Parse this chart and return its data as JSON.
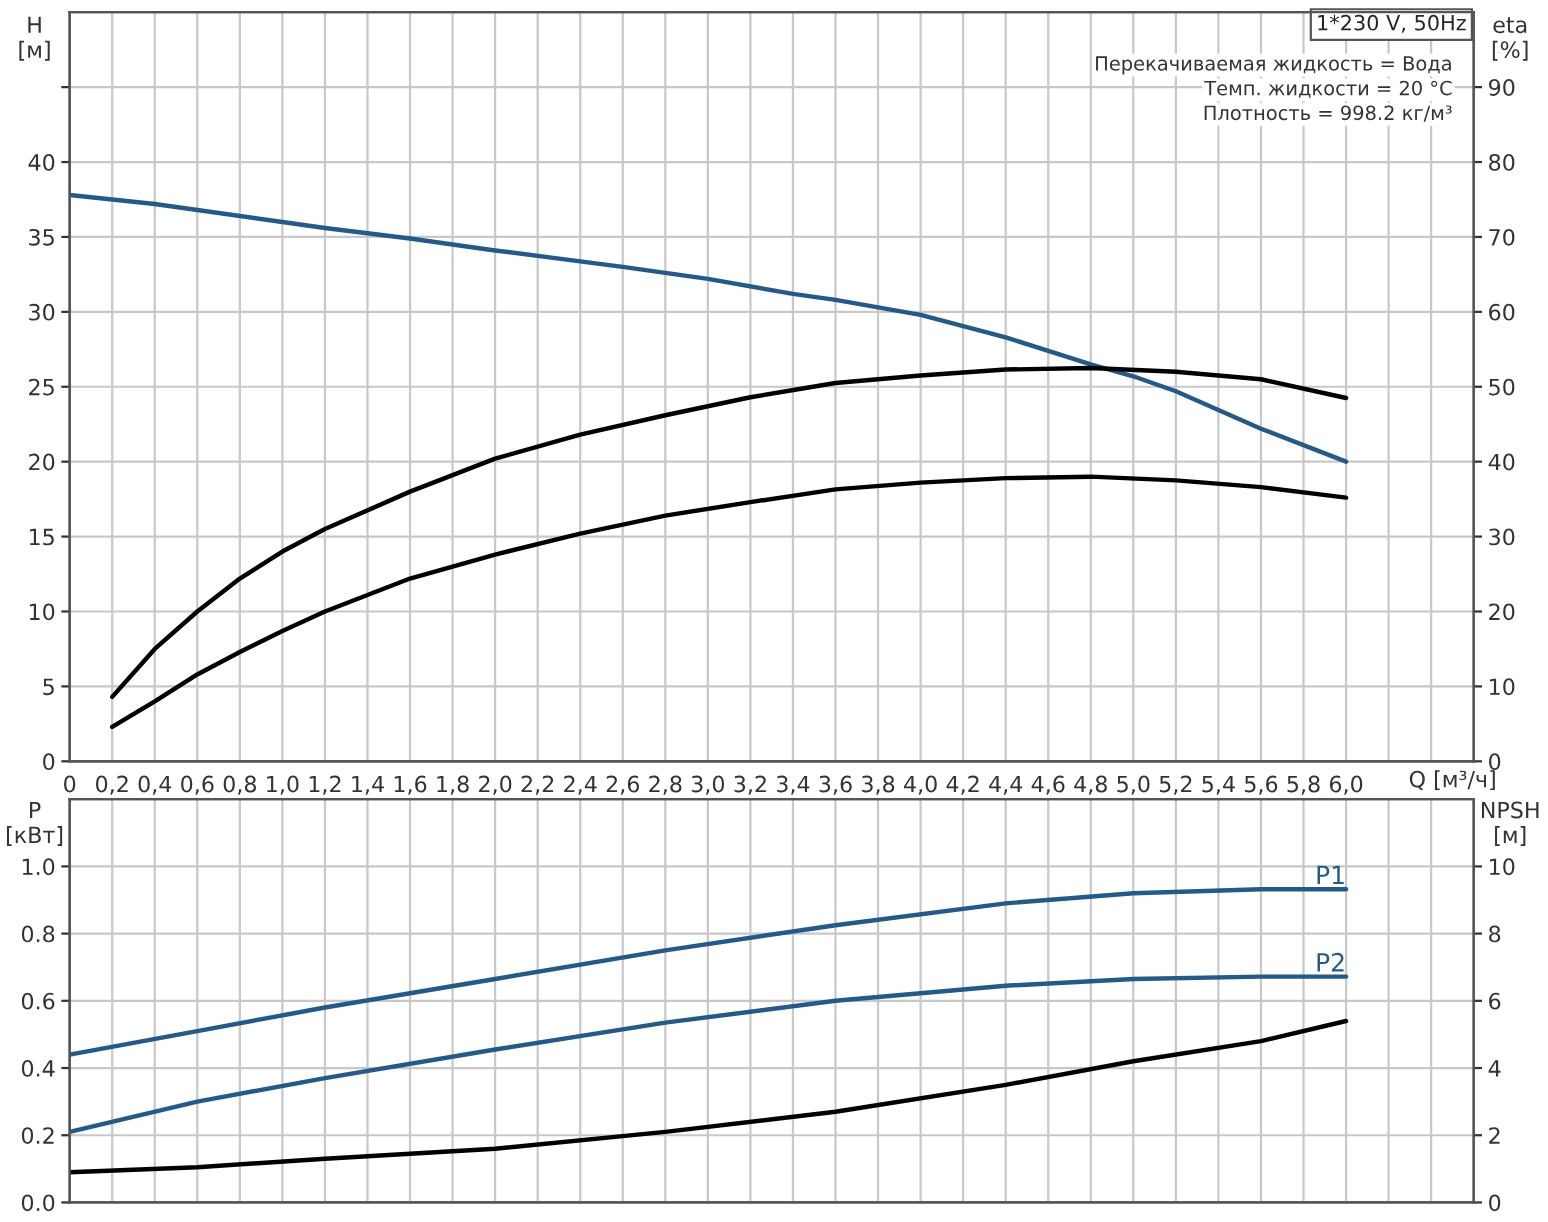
{
  "chart_data": [
    {
      "type": "line",
      "xlabel": "Q [м³/ч]",
      "ylabel": "H\n[м]",
      "y2label": "eta\n[%]",
      "annotations": [
        "1*230 V, 50Hz",
        "Перекачиваемая жидкость = Вода",
        "Темп. жидкости = 20 °C",
        "Плотность = 998.2 кг/м³"
      ],
      "xlim": [
        0,
        6.6
      ],
      "xticks": [
        0,
        {
          "value": 0.2,
          "label": "0,2"
        },
        {
          "value": 0.4,
          "label": "0,4"
        },
        {
          "value": 0.6,
          "label": "0,6"
        },
        {
          "value": 0.8,
          "label": "0,8"
        },
        {
          "value": 1.0,
          "label": "1,0"
        },
        {
          "value": 1.2,
          "label": "1,2"
        },
        {
          "value": 1.4,
          "label": "1,4"
        },
        {
          "value": 1.6,
          "label": "1,6"
        },
        {
          "value": 1.8,
          "label": "1,8"
        },
        {
          "value": 2.0,
          "label": "2,0"
        },
        {
          "value": 2.2,
          "label": "2,2"
        },
        {
          "value": 2.4,
          "label": "2,4"
        },
        {
          "value": 2.6,
          "label": "2,6"
        },
        {
          "value": 2.8,
          "label": "2,8"
        },
        {
          "value": 3.0,
          "label": "3,0"
        },
        {
          "value": 3.2,
          "label": "3,2"
        },
        {
          "value": 3.4,
          "label": "3,4"
        },
        {
          "value": 3.6,
          "label": "3,6"
        },
        {
          "value": 3.8,
          "label": "3,8"
        },
        {
          "value": 4.0,
          "label": "4,0"
        },
        {
          "value": 4.2,
          "label": "4,2"
        },
        {
          "value": 4.4,
          "label": "4,4"
        },
        {
          "value": 4.6,
          "label": "4,6"
        },
        {
          "value": 4.8,
          "label": "4,8"
        },
        {
          "value": 5.0,
          "label": "5,0"
        },
        {
          "value": 5.2,
          "label": "5,2"
        },
        {
          "value": 5.4,
          "label": "5,4"
        },
        {
          "value": 5.6,
          "label": "5,6"
        },
        {
          "value": 5.8,
          "label": "5,8"
        },
        {
          "value": 6.0,
          "label": "6,0"
        },
        {
          "value": 6.2,
          "label": null
        },
        {
          "value": 6.4,
          "label": null
        }
      ],
      "ylim": [
        0,
        50
      ],
      "yticks": [
        0,
        5,
        10,
        15,
        20,
        25,
        30,
        35,
        40,
        {
          "value": 45,
          "label": null
        }
      ],
      "y2lim": [
        0,
        100
      ],
      "y2ticks": [
        0,
        10,
        20,
        30,
        40,
        50,
        60,
        70,
        80,
        90
      ],
      "grid": true,
      "legend": false,
      "series": [
        {
          "color": "#245a87",
          "x": [
            0,
            0.4,
            1.0,
            1.2,
            1.6,
            2.0,
            2.6,
            3.0,
            3.4,
            3.6,
            4.0,
            4.4,
            4.8,
            5.0,
            5.2,
            5.6,
            6.0
          ],
          "values": [
            37.8,
            37.2,
            36.0,
            35.6,
            34.9,
            34.1,
            33.0,
            32.2,
            31.2,
            30.8,
            29.8,
            28.3,
            26.5,
            25.7,
            24.7,
            22.2,
            20.0
          ]
        },
        {
          "color": "#000000",
          "axis": "y2",
          "x": [
            0.2,
            0.4,
            0.6,
            0.8,
            1.0,
            1.2,
            1.6,
            2.0,
            2.4,
            2.8,
            3.2,
            3.6,
            4.0,
            4.4,
            4.8,
            5.2,
            5.6,
            6.0
          ],
          "values": [
            8.6,
            15,
            20,
            24.4,
            28,
            31,
            36,
            40.4,
            43.6,
            46.2,
            48.6,
            50.5,
            51.5,
            52.3,
            52.5,
            52,
            51,
            48.5
          ]
        },
        {
          "color": "#000000",
          "axis": "y2",
          "x": [
            0.2,
            0.4,
            0.6,
            0.8,
            1.0,
            1.2,
            1.6,
            2.0,
            2.4,
            2.8,
            3.2,
            3.6,
            4.0,
            4.4,
            4.8,
            5.2,
            5.6,
            6.0
          ],
          "values": [
            4.6,
            8,
            11.6,
            14.6,
            17.4,
            20,
            24.4,
            27.6,
            30.4,
            32.8,
            34.6,
            36.3,
            37.2,
            37.8,
            38,
            37.5,
            36.6,
            35.2
          ]
        }
      ]
    },
    {
      "type": "line",
      "ylabel": "P\n[кВт]",
      "y2label": "NPSH\n[м]",
      "xlim": [
        0,
        6.6
      ],
      "xticks": [
        0,
        0.2,
        0.4,
        0.6,
        0.8,
        1.0,
        1.2,
        1.4,
        1.6,
        1.8,
        2.0,
        2.2,
        2.4,
        2.6,
        2.8,
        3.0,
        3.2,
        3.4,
        3.6,
        3.8,
        4.0,
        4.2,
        4.4,
        4.6,
        4.8,
        5.0,
        5.2,
        5.4,
        5.6,
        5.8,
        6.0,
        6.2,
        6.4
      ],
      "ylim": [
        0,
        1.2
      ],
      "yticks": [
        {
          "value": 0,
          "label": "0.0"
        },
        {
          "value": 0.2,
          "label": "0.2"
        },
        {
          "value": 0.4,
          "label": "0.4"
        },
        {
          "value": 0.6,
          "label": "0.6"
        },
        {
          "value": 0.8,
          "label": "0.8"
        },
        {
          "value": 1.0,
          "label": "1.0"
        }
      ],
      "y2lim": [
        0,
        12
      ],
      "y2ticks": [
        0,
        2,
        4,
        6,
        8,
        10
      ],
      "grid": true,
      "legend": false,
      "tick_labels": "y",
      "series": [
        {
          "name": "P1",
          "color": "#245a87",
          "x": [
            0,
            0.6,
            1.2,
            2.0,
            2.8,
            3.6,
            4.4,
            5.0,
            5.6,
            6.0
          ],
          "values": [
            0.44,
            0.51,
            0.58,
            0.665,
            0.75,
            0.825,
            0.89,
            0.92,
            0.932,
            0.932
          ]
        },
        {
          "name": "P2",
          "color": "#245a87",
          "x": [
            0,
            0.6,
            1.2,
            2.0,
            2.8,
            3.6,
            4.4,
            5.0,
            5.6,
            6.0
          ],
          "values": [
            0.21,
            0.3,
            0.37,
            0.455,
            0.535,
            0.6,
            0.645,
            0.665,
            0.672,
            0.672
          ]
        },
        {
          "color": "#000000",
          "axis": "y2",
          "x": [
            0,
            0.6,
            1.2,
            2.0,
            2.8,
            3.6,
            4.4,
            5.0,
            5.6,
            6.0
          ],
          "values": [
            0.9,
            1.05,
            1.3,
            1.6,
            2.1,
            2.7,
            3.5,
            4.2,
            4.8,
            5.4
          ]
        }
      ]
    }
  ]
}
